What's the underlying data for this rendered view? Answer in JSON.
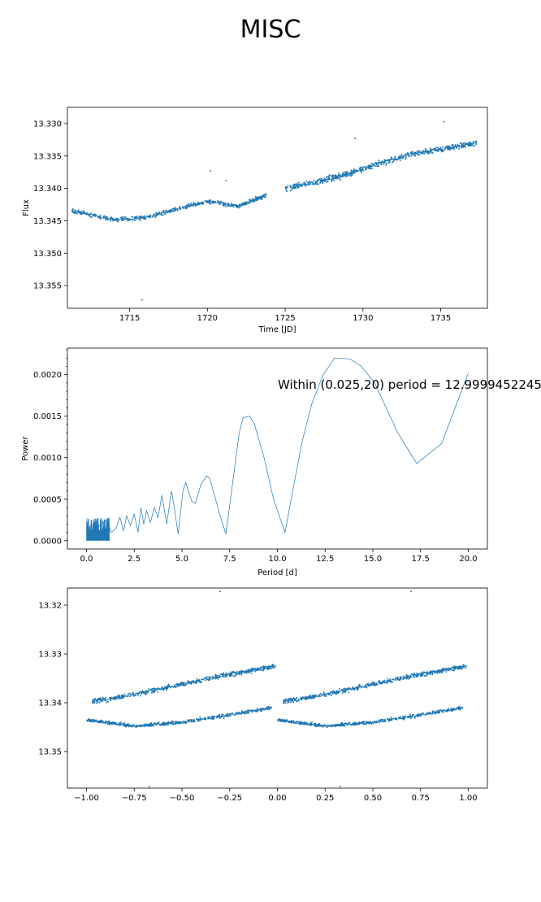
{
  "figure": {
    "suptitle": "MISC",
    "colors": {
      "series": "#1f77b4",
      "axis": "#000000",
      "background": "#ffffff"
    }
  },
  "chart_data": [
    {
      "type": "scatter",
      "xlabel": "Time [JD]",
      "ylabel": "Flux",
      "xlim": [
        1711.0,
        1738.0
      ],
      "ylim": [
        13.3585,
        13.3275
      ],
      "y_inverted": true,
      "xticks": [
        1715,
        1720,
        1725,
        1730,
        1735
      ],
      "xtick_labels": [
        "1715",
        "1720",
        "1725",
        "1730",
        "1735"
      ],
      "yticks": [
        13.33,
        13.335,
        13.34,
        13.345,
        13.35,
        13.355
      ],
      "ytick_labels": [
        "13.330",
        "13.335",
        "13.340",
        "13.345",
        "13.350",
        "13.355"
      ],
      "grid": false,
      "series": [
        {
          "segments": [
            {
              "x_range": [
                1711.3,
                1723.8
              ],
              "points": 560,
              "trend": [
                [
                  1711.3,
                  13.3435
                ],
                [
                  1714.0,
                  13.3448
                ],
                [
                  1716.0,
                  13.3445
                ],
                [
                  1718.0,
                  13.3432
                ],
                [
                  1720.0,
                  13.342
                ],
                [
                  1722.0,
                  13.3428
                ],
                [
                  1723.8,
                  13.341
                ]
              ],
              "scatter": 0.0005
            },
            {
              "x_range": [
                1725.0,
                1737.3
              ],
              "points": 620,
              "trend": [
                [
                  1725.0,
                  13.34
                ],
                [
                  1727.0,
                  13.339
                ],
                [
                  1729.0,
                  13.3378
                ],
                [
                  1731.0,
                  13.3362
                ],
                [
                  1733.0,
                  13.3348
                ],
                [
                  1735.0,
                  13.334
                ],
                [
                  1737.3,
                  13.333
                ]
              ],
              "scatter": 0.0007
            }
          ],
          "outliers": [
            [
              1715.8,
              13.3572
            ],
            [
              1720.2,
              13.3373
            ],
            [
              1721.2,
              13.3388
            ],
            [
              1729.5,
              13.3323
            ],
            [
              1735.2,
              13.3297
            ]
          ]
        }
      ]
    },
    {
      "type": "line",
      "xlabel": "Period [d]",
      "ylabel": "Power",
      "xlim": [
        -1.0,
        21.0
      ],
      "ylim": [
        -0.0001,
        0.00232
      ],
      "xticks": [
        0.0,
        2.5,
        5.0,
        7.5,
        10.0,
        12.5,
        15.0,
        17.5,
        20.0
      ],
      "xtick_labels": [
        "0.0",
        "2.5",
        "5.0",
        "7.5",
        "10.0",
        "12.5",
        "15.0",
        "17.5",
        "20.0"
      ],
      "yticks": [
        0.0,
        0.0005,
        0.001,
        0.0015,
        0.002
      ],
      "ytick_labels": [
        "0.0000",
        "0.0005",
        "0.0010",
        "0.0015",
        "0.0020"
      ],
      "grid": false,
      "annotation": "Within (0.025,20) period = 12.9999452245",
      "series": [
        {
          "x": [
            0.2,
            0.5,
            0.75,
            1.05,
            1.3,
            1.55,
            1.75,
            1.95,
            2.1,
            2.3,
            2.5,
            2.7,
            2.85,
            3.0,
            3.15,
            3.35,
            3.55,
            3.75,
            3.95,
            4.2,
            4.45,
            4.6,
            4.8,
            5.05,
            5.2,
            5.5,
            5.7,
            6.0,
            6.3,
            6.45,
            6.7,
            7.0,
            7.3,
            7.6,
            8.0,
            8.2,
            8.55,
            8.8,
            9.3,
            9.8,
            10.4,
            10.8,
            11.3,
            11.8,
            12.4,
            13.0,
            13.8,
            14.4,
            15.1,
            16.3,
            17.3,
            18.6,
            20.0
          ],
          "y": [
            0.0001,
            0.00012,
            0.0002,
            0.00025,
            0.0001,
            0.00015,
            0.00028,
            0.00012,
            0.0003,
            0.00018,
            0.00032,
            0.0001,
            0.0004,
            0.0002,
            0.00036,
            0.00022,
            0.0004,
            0.00028,
            0.00055,
            0.0002,
            0.0006,
            0.0004,
            8e-05,
            0.0006,
            0.0007,
            0.00048,
            0.00045,
            0.00068,
            0.00078,
            0.00075,
            0.00055,
            0.0003,
            8e-05,
            0.0006,
            0.0013,
            0.00148,
            0.0015,
            0.0014,
            0.001,
            0.0005,
            0.0001,
            0.0006,
            0.0012,
            0.00165,
            0.002,
            0.0022,
            0.00219,
            0.0021,
            0.0019,
            0.0013,
            0.00093,
            0.00117,
            0.00202
          ]
        }
      ],
      "dense_band": {
        "x_range": [
          0.0,
          1.2
        ],
        "y_max": 0.00028
      }
    },
    {
      "type": "scatter",
      "xlabel": "",
      "ylabel": "",
      "xlim": [
        -1.1,
        1.1
      ],
      "ylim": [
        13.3575,
        13.3165
      ],
      "y_inverted": true,
      "xticks": [
        -1.0,
        -0.75,
        -0.5,
        -0.25,
        0.0,
        0.25,
        0.5,
        0.75,
        1.0
      ],
      "xtick_labels": [
        "−1.00",
        "−0.75",
        "−0.50",
        "−0.25",
        "0.00",
        "0.25",
        "0.50",
        "0.75",
        "1.00"
      ],
      "yticks": [
        13.32,
        13.33,
        13.34,
        13.35
      ],
      "ytick_labels": [
        "13.32",
        "13.33",
        "13.34",
        "13.35"
      ],
      "grid": false,
      "series": [
        {
          "phase_bands": [
            {
              "trend": [
                [
                  0.0,
                  13.3435
                ],
                [
                  0.25,
                  13.3448
                ],
                [
                  0.5,
                  13.344
                ],
                [
                  0.75,
                  13.3425
                ],
                [
                  0.97,
                  13.341
                ]
              ],
              "points": 520,
              "scatter": 0.0005
            },
            {
              "trend": [
                [
                  0.03,
                  13.3398
                ],
                [
                  0.25,
                  13.3383
                ],
                [
                  0.5,
                  13.3362
                ],
                [
                  0.75,
                  13.3342
                ],
                [
                  0.99,
                  13.3325
                ]
              ],
              "points": 560,
              "scatter": 0.0007
            }
          ],
          "mirrored_to": [
            -1.0,
            0.0
          ],
          "outliers": [
            [
              -0.3,
              13.3172
            ],
            [
              0.7,
              13.3172
            ],
            [
              -0.67,
              13.3572
            ],
            [
              0.33,
              13.3572
            ]
          ]
        }
      ]
    }
  ]
}
